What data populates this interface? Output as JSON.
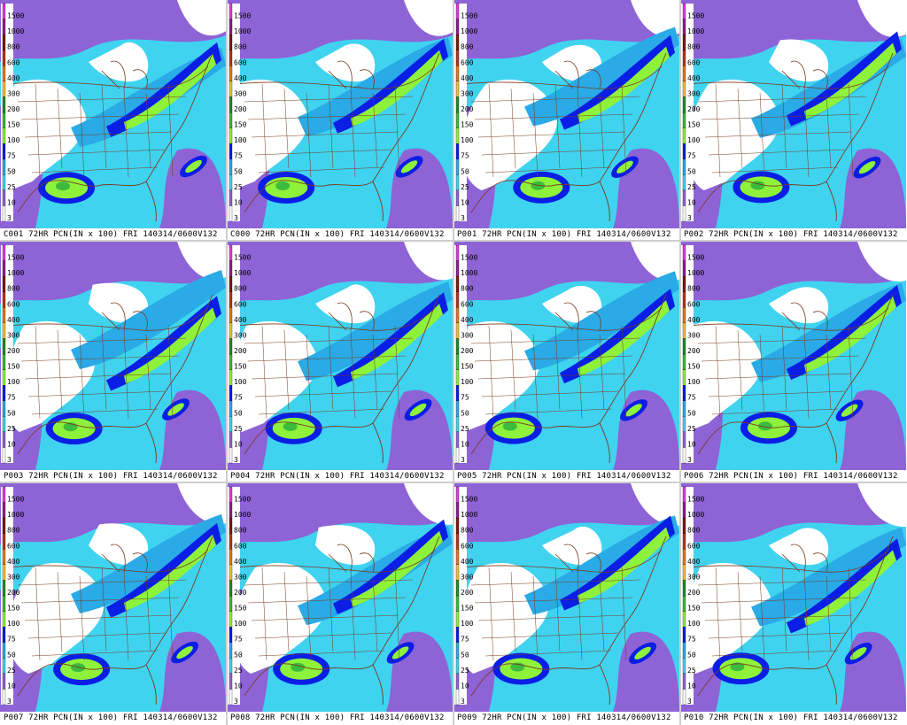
{
  "legend": {
    "levels": [
      "3",
      "10",
      "25",
      "50",
      "75",
      "100",
      "150",
      "200",
      "300",
      "400",
      "600",
      "800",
      "1000",
      "1500"
    ],
    "colors": [
      "#ffffff",
      "#8e63d6",
      "#3fd3f0",
      "#2aaae6",
      "#0a1ee6",
      "#8ef23a",
      "#3cbb3c",
      "#1e8c2a",
      "#e8c23a",
      "#e07a20",
      "#b8341c",
      "#7a1a10",
      "#8e1e8e",
      "#e23ae0"
    ]
  },
  "colors": {
    "border": "#7a3a1e",
    "state": "#7a3a1e"
  },
  "panels": [
    {
      "caption": "C001 72HR PCN(IN x 100) FRI 140314/0600V132"
    },
    {
      "caption": "C000 72HR PCN(IN x 100) FRI 140314/0600V132"
    },
    {
      "caption": "P001 72HR PCN(IN x 100) FRI 140314/0600V132"
    },
    {
      "caption": "P002 72HR PCN(IN x 100) FRI 140314/0600V132"
    },
    {
      "caption": "P003 72HR PCN(IN x 100) FRI 140314/0600V132"
    },
    {
      "caption": "P004 72HR PCN(IN x 100) FRI 140314/0600V132"
    },
    {
      "caption": "P005 72HR PCN(IN x 100) FRI 140314/0600V132"
    },
    {
      "caption": "P006 72HR PCN(IN x 100) FRI 140314/0600V132"
    },
    {
      "caption": "P007 72HR PCN(IN x 100) FRI 140314/0600V132"
    },
    {
      "caption": "P008 72HR PCN(IN x 100) FRI 140314/0600V132"
    },
    {
      "caption": "P009 72HR PCN(IN x 100) FRI 140314/0600V132"
    },
    {
      "caption": "P010 72HR PCN(IN x 100) FRI 140314/0600V132"
    }
  ]
}
